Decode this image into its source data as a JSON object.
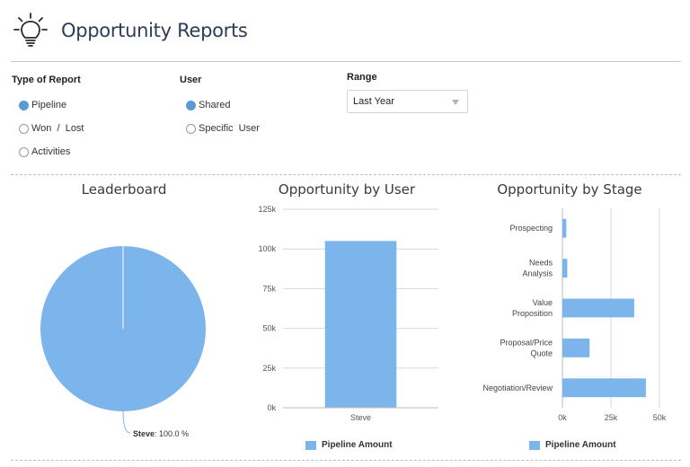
{
  "header": {
    "title": "Opportunity Reports",
    "icon": "lightbulb-icon"
  },
  "filters": {
    "type_of_report": {
      "label": "Type of Report",
      "options": [
        {
          "label": "Pipeline",
          "selected": true
        },
        {
          "label": "Won  /  Lost",
          "selected": false
        },
        {
          "label": "Activities",
          "selected": false
        }
      ]
    },
    "user": {
      "label": "User",
      "options": [
        {
          "label": "Shared",
          "selected": true
        },
        {
          "label": "Specific  User",
          "selected": false
        }
      ]
    },
    "range": {
      "label": "Range",
      "value": "Last Year"
    }
  },
  "colors": {
    "accent": "#7cb5ec",
    "radio_selected": "#5b9bd5",
    "title": "#2e3d57"
  },
  "charts": {
    "leaderboard": {
      "title": "Leaderboard"
    },
    "by_user": {
      "title": "Opportunity by User",
      "legend": "Pipeline Amount"
    },
    "by_stage": {
      "title": "Opportunity by Stage",
      "legend": "Pipeline Amount"
    }
  },
  "chart_data": [
    {
      "type": "pie",
      "title": "Leaderboard",
      "slices": [
        {
          "label": "Steve",
          "value": 100.0,
          "display": "100.0 %"
        }
      ]
    },
    {
      "type": "bar",
      "title": "Opportunity by User",
      "categories": [
        "Steve"
      ],
      "series": [
        {
          "name": "Pipeline Amount",
          "values": [
            105000
          ]
        }
      ],
      "ylim": [
        0,
        125000
      ],
      "yticks": [
        "0k",
        "25k",
        "50k",
        "75k",
        "100k",
        "125k"
      ],
      "grid": true,
      "legend": "bottom"
    },
    {
      "type": "bar",
      "orientation": "horizontal",
      "title": "Opportunity by Stage",
      "categories": [
        [
          "Prospecting"
        ],
        [
          "Needs",
          "Analysis"
        ],
        [
          "Value",
          "Proposition"
        ],
        [
          "Proposal/Price",
          "Quote"
        ],
        [
          "Negotiation/Review"
        ]
      ],
      "series": [
        {
          "name": "Pipeline Amount",
          "values": [
            2000,
            2500,
            37000,
            14000,
            43000
          ]
        }
      ],
      "xlim": [
        0,
        50000
      ],
      "xticks": [
        "0k",
        "25k",
        "50k"
      ],
      "grid": true,
      "legend": "bottom"
    }
  ]
}
